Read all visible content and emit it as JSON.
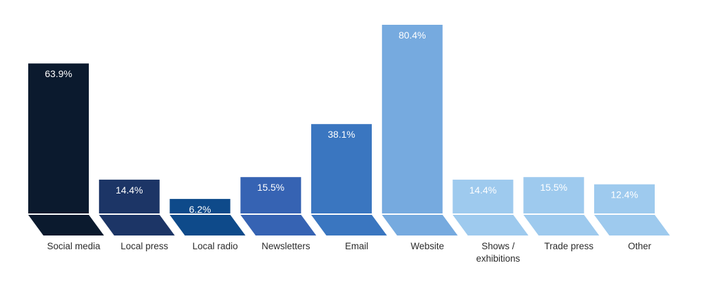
{
  "chart_data": {
    "type": "bar",
    "categories": [
      [
        "Social media"
      ],
      [
        "Local press"
      ],
      [
        "Local radio"
      ],
      [
        "Newsletters"
      ],
      [
        "Email"
      ],
      [
        "Website"
      ],
      [
        "Shows /",
        "exhibitions"
      ],
      [
        "Trade press"
      ],
      [
        "Other"
      ]
    ],
    "values": [
      63.9,
      14.4,
      6.2,
      15.5,
      38.1,
      80.4,
      14.4,
      15.5,
      12.4
    ],
    "value_labels": [
      "63.9%",
      "14.4%",
      "6.2%",
      "15.5%",
      "38.1%",
      "80.4%",
      "14.4%",
      "15.5%",
      "12.4%"
    ],
    "unit": "%",
    "ylim": [
      0,
      80.4
    ],
    "grid": false,
    "legend": "none",
    "colors": [
      "#0b1a2e",
      "#1c3566",
      "#0e4a8a",
      "#3663b3",
      "#3a76c0",
      "#76aadf",
      "#9ecaee",
      "#9ecaee",
      "#9ecaee"
    ]
  }
}
